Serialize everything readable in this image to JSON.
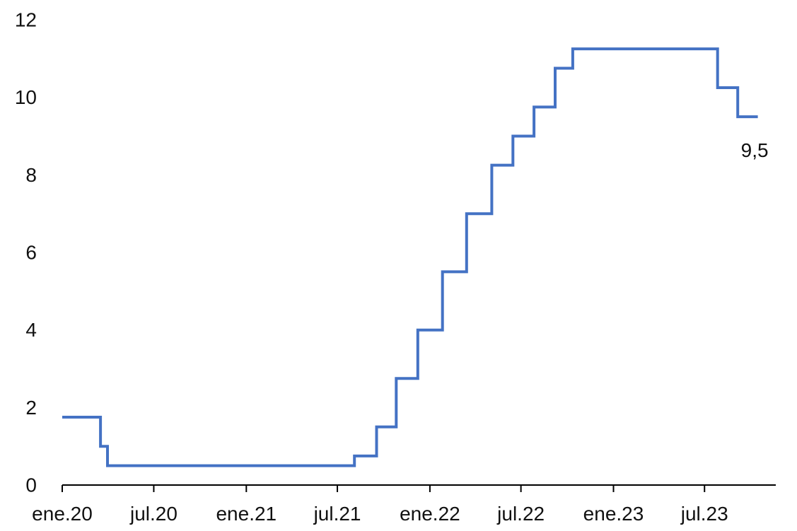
{
  "chart_data": {
    "type": "line",
    "step": true,
    "title": "",
    "xlabel": "",
    "ylabel": "",
    "ylim": [
      0,
      12
    ],
    "y_ticks": [
      0,
      2,
      4,
      6,
      8,
      10,
      12
    ],
    "y_tick_labels": [
      "0",
      "2",
      "4",
      "6",
      "8",
      "10",
      "12"
    ],
    "x_ticks": [
      "2020-01-01",
      "2020-07-01",
      "2021-01-01",
      "2021-07-01",
      "2022-01-01",
      "2022-07-01",
      "2023-01-01",
      "2023-07-01"
    ],
    "x_tick_labels": [
      "ene.20",
      "jul.20",
      "ene.21",
      "jul.21",
      "ene.22",
      "jul.22",
      "ene.23",
      "jul.23"
    ],
    "xlim": [
      "2020-01-01",
      "2023-10-31"
    ],
    "grid": false,
    "legend": "none",
    "colors": {
      "series": "#4472C4"
    },
    "series": [
      {
        "x": [
          "2020-01-01",
          "2020-03-17",
          "2020-03-31",
          "2021-08-04",
          "2021-09-17",
          "2021-10-26",
          "2021-12-08",
          "2022-01-26",
          "2022-03-15",
          "2022-05-04",
          "2022-06-15",
          "2022-07-27",
          "2022-09-07",
          "2022-10-12",
          "2022-12-07",
          "2023-07-27",
          "2023-09-05",
          "2023-10-15"
        ],
        "y": [
          1.75,
          1.0,
          0.5,
          0.75,
          1.5,
          2.75,
          4.0,
          5.5,
          7.0,
          8.25,
          9.0,
          9.75,
          10.75,
          11.25,
          11.25,
          10.25,
          9.5,
          9.5
        ]
      }
    ],
    "annotations": [
      {
        "text": "9,5",
        "x": "2023-10-15",
        "y": 9.5
      }
    ]
  }
}
